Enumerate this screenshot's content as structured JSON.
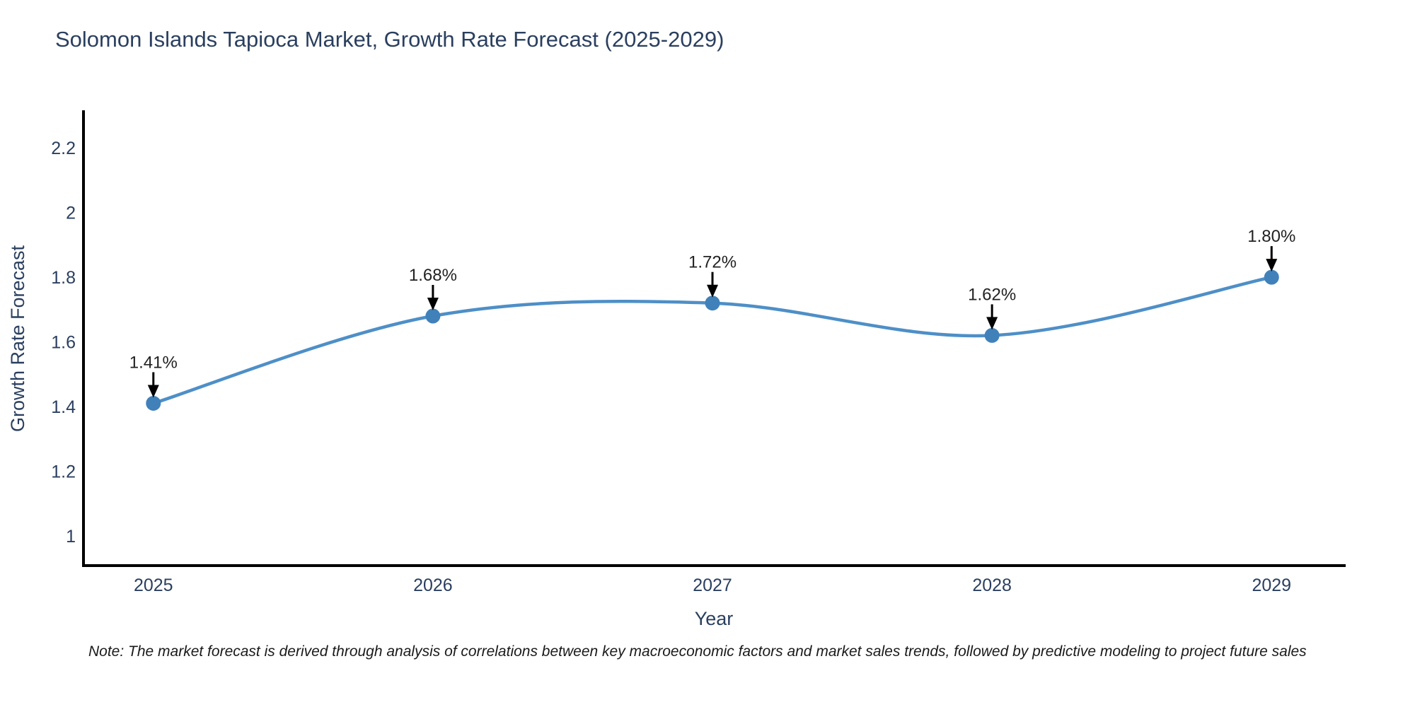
{
  "title": "Solomon Islands Tapioca Market, Growth Rate Forecast (2025-2029)",
  "note": "Note: The market forecast is derived through analysis of correlations between key macroeconomic factors and market sales trends, followed by predictive modeling to project future sales",
  "chart_data": {
    "type": "line",
    "line_shape": "spline",
    "x": [
      2025,
      2026,
      2027,
      2028,
      2029
    ],
    "categories": [
      "2025",
      "2026",
      "2027",
      "2028",
      "2029"
    ],
    "series": [
      {
        "name": "Growth Rate Forecast",
        "values": [
          1.41,
          1.68,
          1.72,
          1.62,
          1.8
        ]
      }
    ],
    "point_labels": [
      "1.41%",
      "1.68%",
      "1.72%",
      "1.62%",
      "1.80%"
    ],
    "title": "Solomon Islands Tapioca Market, Growth Rate Forecast (2025-2029)",
    "xlabel": "Year",
    "ylabel": "Growth Rate Forecast",
    "xlim": [
      2024.75,
      2029.26
    ],
    "ylim": [
      0.908,
      2.312
    ],
    "y_ticks": [
      "1",
      "1.2",
      "1.4",
      "1.6",
      "1.8",
      "2",
      "2.2"
    ],
    "y_tick_values": [
      1,
      1.2,
      1.4,
      1.6,
      1.8,
      2,
      2.2
    ],
    "grid": false,
    "legend_position": "none",
    "colors": {
      "line": "#4e8fc7",
      "marker": "#4181ba",
      "axis": "#000000",
      "title_text": "#2a3f5f",
      "tick_text": "#2a3f5f",
      "axis_title_text": "#2a3f5f",
      "annotation_text": "#222222",
      "arrow": "#000000",
      "background": "#ffffff"
    }
  }
}
